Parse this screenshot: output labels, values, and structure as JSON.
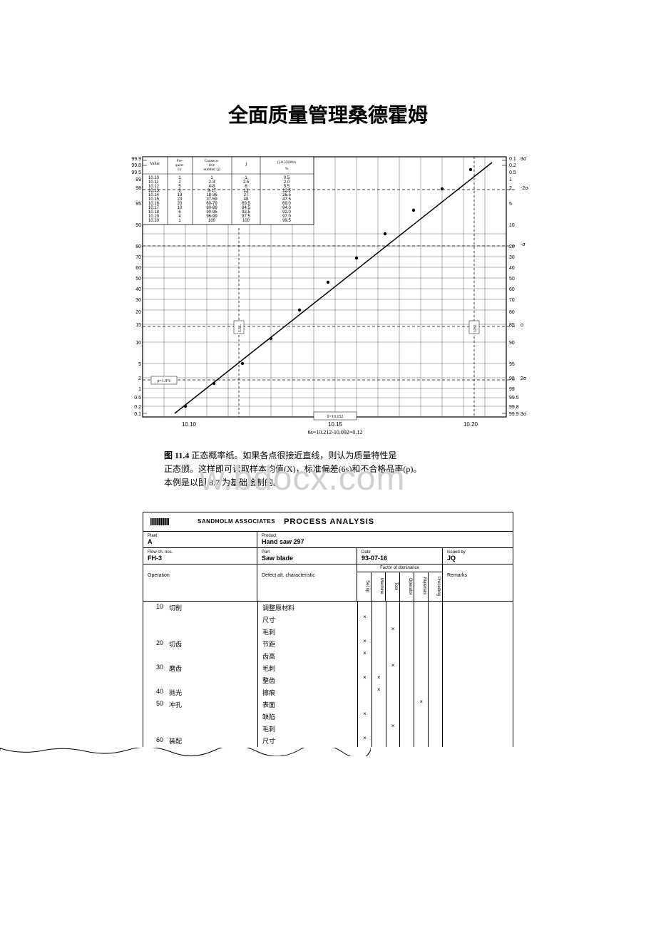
{
  "title": "全面质量管理桑德霍姆",
  "watermark": "w.bdocx.com",
  "chart": {
    "type": "probability-plot",
    "axis_color": "#000000",
    "grid_color": "#000000",
    "bg_color": "#ffffff",
    "left_y_ticks": [
      "99.9",
      "99.8",
      "99.5",
      "99",
      "98",
      "95",
      "90",
      "80",
      "70",
      "60",
      "50",
      "40",
      "30",
      "20",
      "15",
      "10",
      "5",
      "2",
      "1",
      "0.5",
      "0.2",
      "0.1"
    ],
    "right_y_ticks": [
      "0.1",
      "0.2",
      "0.5",
      "1",
      "2",
      "5",
      "10",
      "20",
      "30",
      "40",
      "50",
      "60",
      "70",
      "80",
      "90",
      "95",
      "98",
      "99",
      "99.5",
      "99.8",
      "99.9"
    ],
    "sigma_labels_right": [
      "3σ",
      "-2σ",
      "-σ",
      "σ",
      "2σ",
      "3σ"
    ],
    "table_headers": [
      "Value",
      "Fre-\nquen-\ncy",
      "Consecu-\ntive\nnumber (j)",
      "J̄",
      "(j̄-0.5)100/n\n%"
    ],
    "table_rows": [
      [
        "10.10",
        "1",
        "1",
        "1",
        "0.5"
      ],
      [
        "10.11",
        "2",
        "2-3",
        "2.5",
        "2.0"
      ],
      [
        "10.12",
        "5",
        "4-8",
        "6",
        "5.5"
      ],
      [
        "10.13",
        "9",
        "9-17",
        "13",
        "12.5"
      ],
      [
        "10.14",
        "19",
        "18-36",
        "27",
        "26.5"
      ],
      [
        "10.15",
        "23",
        "37-59",
        "48",
        "47.5"
      ],
      [
        "10.16",
        "20",
        "60-79",
        "69.5",
        "69.0"
      ],
      [
        "10.17",
        "10",
        "80-89",
        "84.5",
        "84.0"
      ],
      [
        "10.18",
        "6",
        "90-95",
        "92.5",
        "92.0"
      ],
      [
        "10.19",
        "4",
        "96-99",
        "97.5",
        "97.0"
      ],
      [
        "10.20",
        "1",
        "100",
        "100",
        "99.5"
      ]
    ],
    "x_labels": [
      "10.10",
      "10.15",
      "10.20"
    ],
    "x_center_label": "x̄=10.152",
    "bottom_formula": "6s=10.212-10.092=0.12",
    "lsl_label": "LSL",
    "usl_label": "USL",
    "lsl_tag": "p=1.9%"
  },
  "caption": {
    "fig_label": "图 11.4",
    "line1": "正态概率纸。如果各点很接近直线，则认为质量特性是",
    "line2": "正态颁。这样即可读取样本均值(X)，标准偏差(6s)和不合格品率(p)。",
    "line3": "本例是以图 8.7 为基础绘制的。"
  },
  "form": {
    "brand": "SANDHOLM ASSOCIATES",
    "title": "PROCESS ANALYSIS",
    "row1": {
      "plant_label": "Plant",
      "plant_value": "A",
      "product_label": "Product",
      "product_value": "Hand saw 297"
    },
    "row2": {
      "flow_label": "Flow ch. nos.",
      "flow_value": "FH-3",
      "part_label": "Part",
      "part_value": "Saw blade",
      "date_label": "Date",
      "date_value": "93-07-16",
      "issued_label": "Issued by",
      "issued_value": "JQ"
    },
    "headers": {
      "operation": "Operation",
      "defect": "Defect alt. characteristic",
      "factor_title": "Factor of dominance",
      "cols": [
        "Set up",
        "Machine",
        "Tool",
        "Operator",
        "Materials",
        "Preceding"
      ],
      "remarks": "Remarks"
    },
    "rows": [
      {
        "num": "10",
        "op": "切削",
        "def": "调整原材料",
        "marks": [
          "",
          "",
          "",
          "",
          "",
          ""
        ]
      },
      {
        "num": "",
        "op": "",
        "def": "尺寸",
        "marks": [
          "×",
          "",
          "",
          "",
          "",
          ""
        ]
      },
      {
        "num": "",
        "op": "",
        "def": "毛刺",
        "marks": [
          "",
          "",
          "×",
          "",
          "",
          ""
        ]
      },
      {
        "num": "20",
        "op": "切齿",
        "def": "节距",
        "marks": [
          "×",
          "",
          "",
          "",
          "",
          ""
        ]
      },
      {
        "num": "",
        "op": "",
        "def": "齿高",
        "marks": [
          "×",
          "",
          "",
          "",
          "",
          ""
        ]
      },
      {
        "num": "30",
        "op": "磨齿",
        "def": "毛刺",
        "marks": [
          "",
          "",
          "×",
          "",
          "",
          ""
        ]
      },
      {
        "num": "",
        "op": "",
        "def": "整齿",
        "marks": [
          "×",
          "×",
          "",
          "",
          "",
          ""
        ]
      },
      {
        "num": "40",
        "op": "抛光",
        "def": "擦痕",
        "marks": [
          "",
          "×",
          "",
          "",
          "",
          ""
        ]
      },
      {
        "num": "50",
        "op": "冲孔",
        "def": "表面",
        "marks": [
          "",
          "",
          "",
          "",
          "×",
          ""
        ]
      },
      {
        "num": "",
        "op": "",
        "def": "缺陷",
        "marks": [
          "×",
          "",
          "",
          "",
          "",
          ""
        ]
      },
      {
        "num": "",
        "op": "",
        "def": "毛刺",
        "marks": [
          "",
          "",
          "×",
          "",
          "",
          ""
        ]
      },
      {
        "num": "60",
        "op": "装配",
        "def": "尺寸",
        "marks": [
          "×",
          "",
          "",
          "",
          "",
          ""
        ]
      }
    ]
  }
}
